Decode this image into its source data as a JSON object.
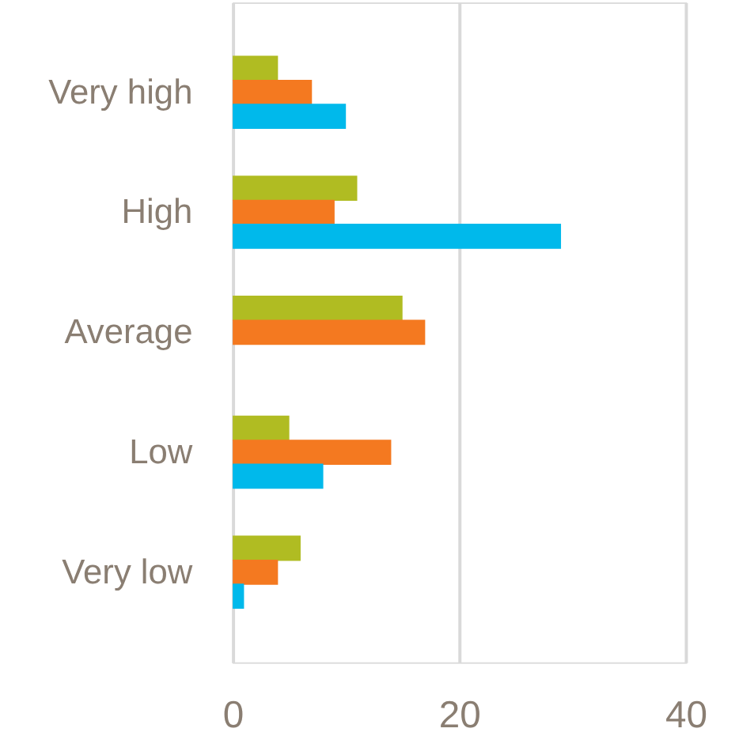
{
  "chart_data": {
    "type": "bar",
    "orientation": "horizontal",
    "categories": [
      "Very high",
      "High",
      "Average",
      "Low",
      "Very low"
    ],
    "series": [
      {
        "color": "#b0bc22",
        "values": [
          4,
          11,
          15,
          5,
          6
        ]
      },
      {
        "color": "#f47920",
        "values": [
          7,
          9,
          17,
          14,
          4
        ]
      },
      {
        "color": "#00b9eb",
        "values": [
          10,
          29,
          0,
          8,
          1
        ]
      }
    ],
    "xlim": [
      0,
      40
    ],
    "xticks": [
      0,
      20,
      40
    ],
    "grid": "x"
  }
}
